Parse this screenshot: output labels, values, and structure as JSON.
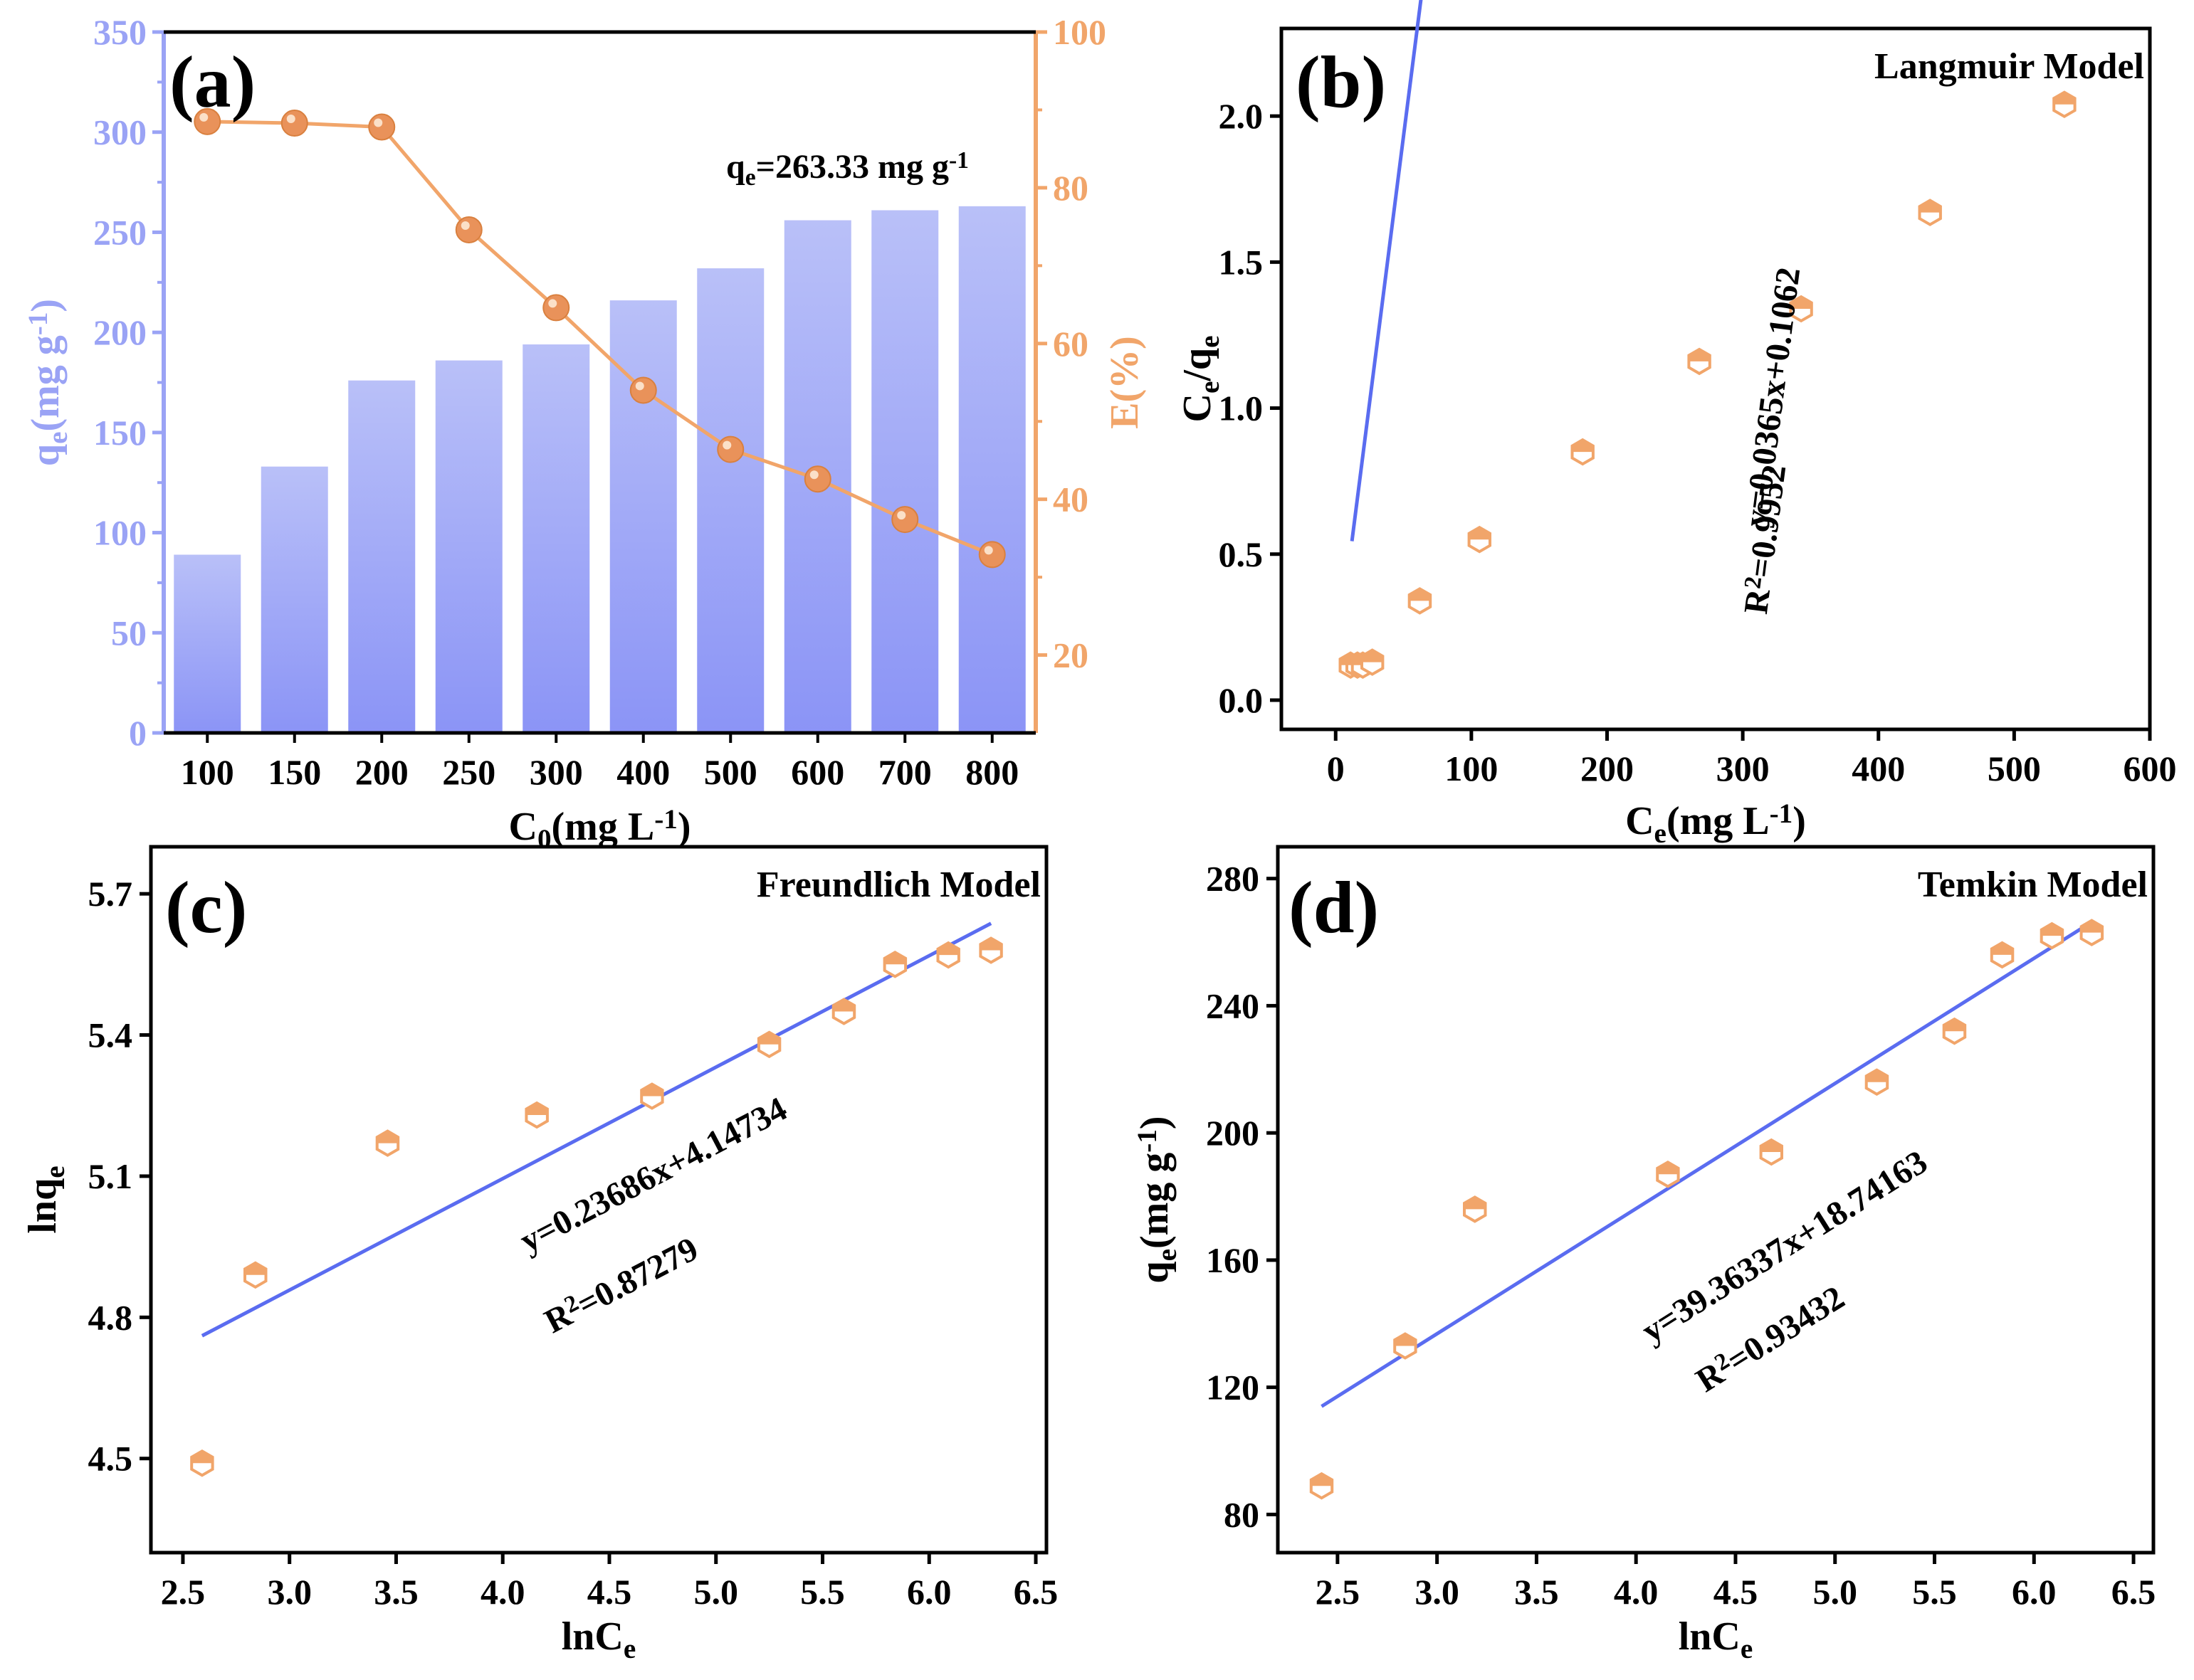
{
  "colors": {
    "bar_top": "#b9c0f8",
    "bar_bottom": "#8b94f6",
    "blue_axis": "#9aa3f5",
    "orange": "#f1a56a",
    "orange_dark": "#e9925a",
    "fit_line": "#5a6cf0",
    "axis": "#000000"
  },
  "chart_data": [
    {
      "panel": "(a)",
      "type": "bar",
      "xlabel_main": "C",
      "xlabel_sub": "0",
      "xlabel_rest": "(mg L",
      "xlabel_sup": "-1",
      "xlabel_end": ")",
      "categories": [
        "100",
        "150",
        "200",
        "250",
        "300",
        "400",
        "500",
        "600",
        "700",
        "800"
      ],
      "ylabel_main": "q",
      "ylabel_sub": "e",
      "ylabel_rest": "(mg g",
      "ylabel_sup": "-1",
      "ylabel_end": ")",
      "ylim": [
        0,
        350
      ],
      "yticks": [
        "0",
        "50",
        "100",
        "150",
        "200",
        "250",
        "300",
        "350"
      ],
      "bar_values": [
        89,
        133,
        176,
        186,
        194,
        216,
        232,
        256,
        261,
        263
      ],
      "y2label": "E(%)",
      "y2lim": [
        10,
        100
      ],
      "y2ticks": [
        "20",
        "40",
        "60",
        "80",
        "100"
      ],
      "line_series_values": [
        88.5,
        88.3,
        87.8,
        74.6,
        64.6,
        54.0,
        46.4,
        42.6,
        37.4,
        32.9
      ],
      "annotation_main": "q",
      "annotation_sub": "e",
      "annotation_rest": "=263.33 mg g",
      "annotation_sup": "-1"
    },
    {
      "panel": "(b)",
      "type": "scatter",
      "model": "Langmuir Model",
      "xlabel_main": "C",
      "xlabel_sub": "e",
      "xlabel_rest": "(mg L",
      "xlabel_sup": "-1",
      "xlabel_end": ")",
      "ylabel_main": "C",
      "ylabel_sub": "e",
      "ylabel_rest": "/q",
      "ylabel_sub2": "e",
      "xlim": [
        -40,
        600
      ],
      "ylim": [
        -0.1,
        2.3
      ],
      "xticks": [
        "0",
        "100",
        "200",
        "300",
        "400",
        "500",
        "600"
      ],
      "yticks": [
        "0.0",
        "0.5",
        "1.0",
        "1.5",
        "2.0"
      ],
      "points": [
        [
          11,
          0.12
        ],
        [
          16,
          0.12
        ],
        [
          20,
          0.12
        ],
        [
          27,
          0.13
        ],
        [
          62,
          0.34
        ],
        [
          106,
          0.55
        ],
        [
          182,
          0.85
        ],
        [
          268,
          1.16
        ],
        [
          343,
          1.34
        ],
        [
          438,
          1.67
        ],
        [
          537,
          2.04
        ]
      ],
      "fit": {
        "slope": 0.0365,
        "intercept": 0.1062,
        "x_range": [
          12,
          537
        ]
      },
      "equation": "y=0.0365x+0.1062",
      "r2_main": "R",
      "r2_sup": "2",
      "r2_rest": "=0.9952"
    },
    {
      "panel": "(c)",
      "type": "scatter",
      "model": "Freundlich Model",
      "xlabel_main": "lnC",
      "xlabel_sub": "e",
      "ylabel_main": "lnq",
      "ylabel_sub": "e",
      "xlim": [
        2.35,
        6.55
      ],
      "ylim": [
        4.3,
        5.8
      ],
      "xticks": [
        "2.5",
        "3.0",
        "3.5",
        "4.0",
        "4.5",
        "5.0",
        "5.5",
        "6.0",
        "6.5"
      ],
      "yticks": [
        "4.5",
        "4.8",
        "5.1",
        "5.4",
        "5.7"
      ],
      "points": [
        [
          2.59,
          4.49
        ],
        [
          2.84,
          4.89
        ],
        [
          3.46,
          5.17
        ],
        [
          4.16,
          5.23
        ],
        [
          4.7,
          5.27
        ],
        [
          5.25,
          5.38
        ],
        [
          5.6,
          5.45
        ],
        [
          5.84,
          5.55
        ],
        [
          6.09,
          5.57
        ],
        [
          6.29,
          5.58
        ]
      ],
      "fit": {
        "slope": 0.23686,
        "intercept": 4.14734,
        "x_range": [
          2.59,
          6.29
        ]
      },
      "equation": "y=0.23686x+4.14734",
      "r2_main": "R",
      "r2_sup": "2",
      "r2_rest": "=0.87279"
    },
    {
      "panel": "(d)",
      "type": "scatter",
      "model": "Temkin Model",
      "xlabel_main": "lnC",
      "xlabel_sub": "e",
      "ylabel_main": "q",
      "ylabel_sub": "e",
      "ylabel_rest": "(mg g",
      "ylabel_sup": "-1",
      "ylabel_end": ")",
      "xlim": [
        2.2,
        6.6
      ],
      "ylim": [
        68,
        290
      ],
      "xticks": [
        "2.5",
        "3.0",
        "3.5",
        "4.0",
        "4.5",
        "5.0",
        "5.5",
        "6.0",
        "6.5"
      ],
      "yticks": [
        "80",
        "120",
        "160",
        "200",
        "240",
        "280"
      ],
      "points": [
        [
          2.42,
          89
        ],
        [
          2.84,
          133
        ],
        [
          3.19,
          176
        ],
        [
          4.16,
          187
        ],
        [
          4.68,
          194
        ],
        [
          5.21,
          216
        ],
        [
          5.6,
          232
        ],
        [
          5.84,
          256
        ],
        [
          6.09,
          262
        ],
        [
          6.29,
          263
        ]
      ],
      "fit": {
        "slope": 39.36337,
        "intercept": 18.74163,
        "x_range": [
          2.42,
          6.29
        ]
      },
      "equation": "y=39.36337x+18.74163",
      "r2_main": "R",
      "r2_sup": "2",
      "r2_rest": "=0.93432"
    }
  ]
}
